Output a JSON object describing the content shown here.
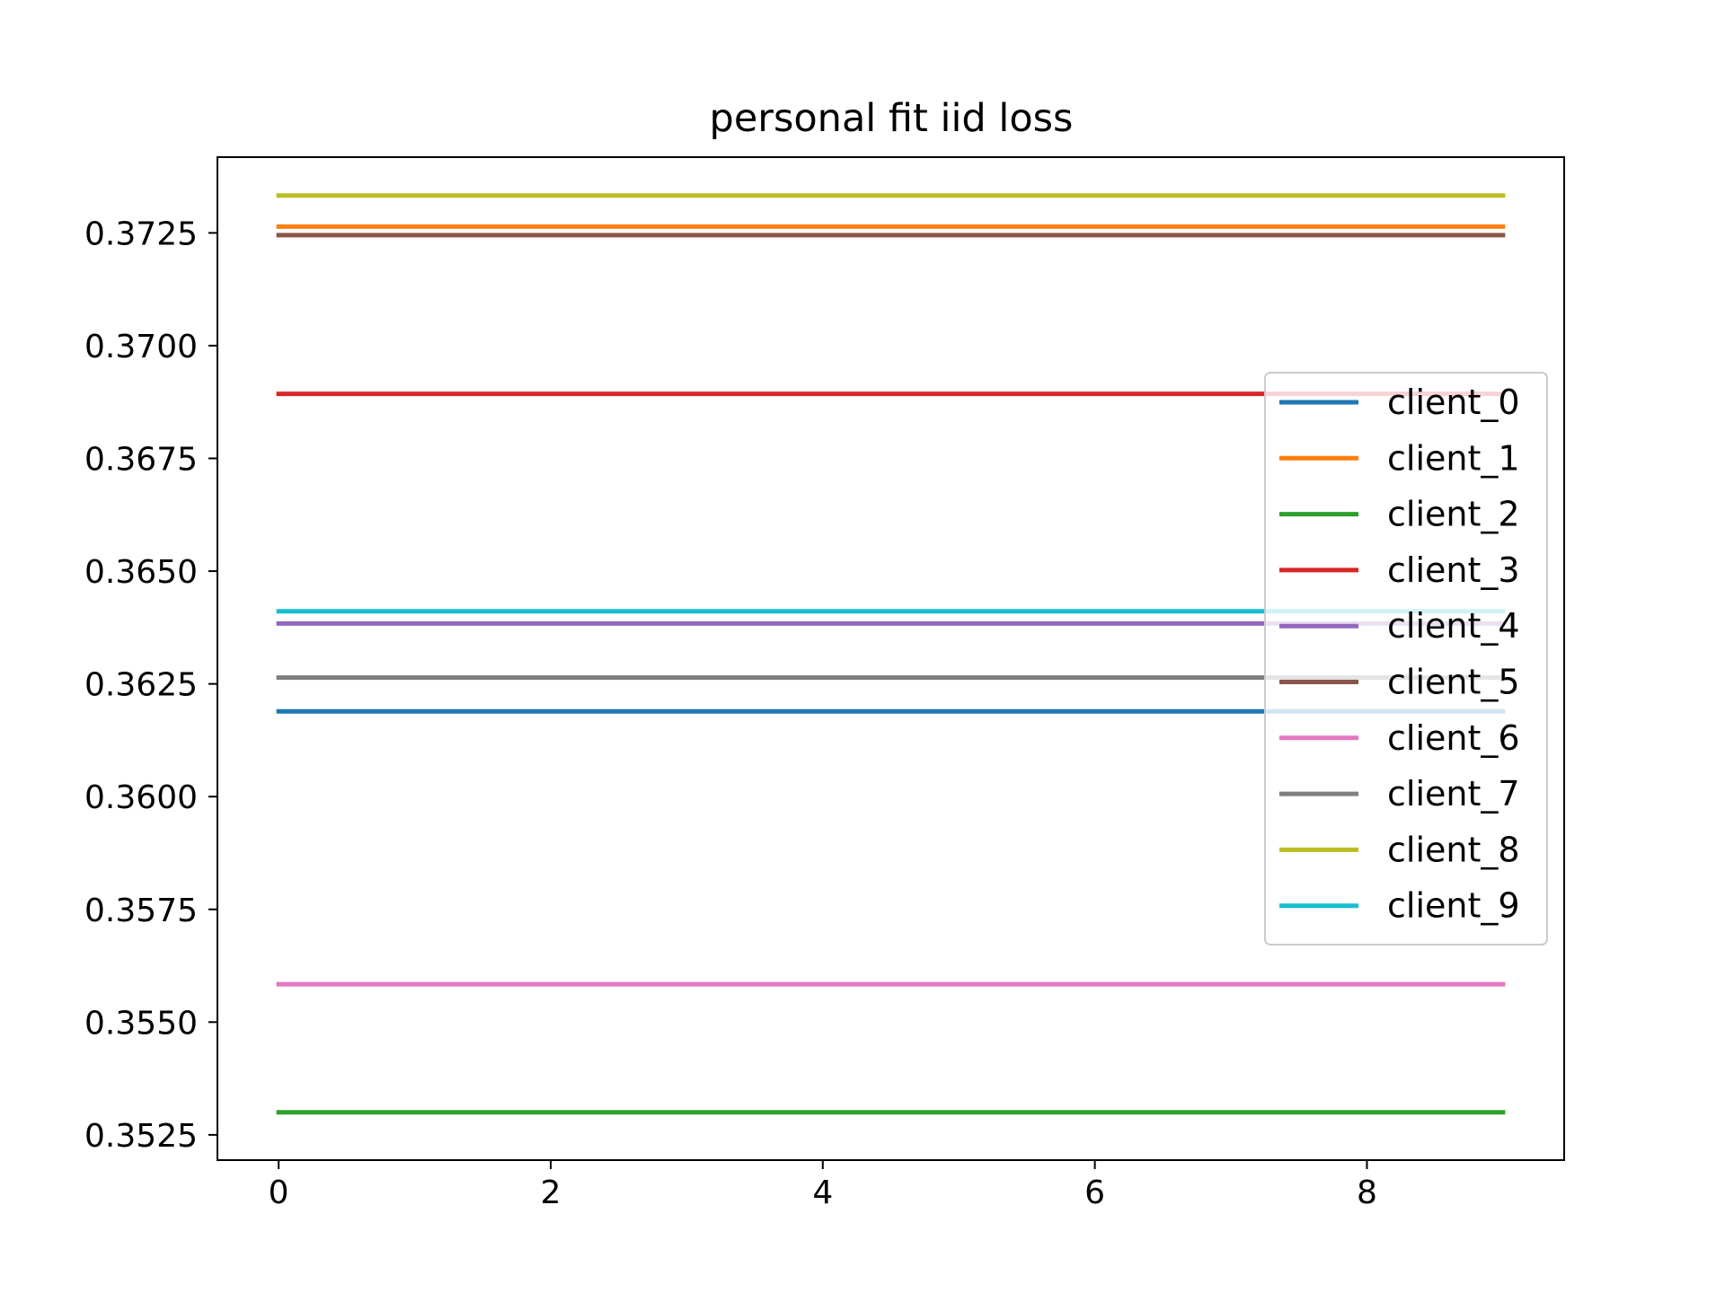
{
  "chart_data": {
    "type": "line",
    "title": "personal fit iid loss",
    "xlabel": "",
    "ylabel": "",
    "x": [
      0,
      1,
      2,
      3,
      4,
      5,
      6,
      7,
      8,
      9
    ],
    "xlim": [
      -0.45,
      9.45
    ],
    "ylim": [
      0.35194,
      0.37418
    ],
    "xticks": [
      0,
      2,
      4,
      6,
      8
    ],
    "xtick_labels": [
      "0",
      "2",
      "4",
      "6",
      "8"
    ],
    "yticks": [
      0.3525,
      0.355,
      0.3575,
      0.36,
      0.3625,
      0.365,
      0.3675,
      0.37,
      0.3725
    ],
    "ytick_labels": [
      "0.3525",
      "0.3550",
      "0.3575",
      "0.3600",
      "0.3625",
      "0.3650",
      "0.3675",
      "0.3700",
      "0.3725"
    ],
    "grid": false,
    "legend_position": "center-right",
    "series": [
      {
        "name": "client_0",
        "color": "#1f77b4",
        "values": [
          0.36189,
          0.36189,
          0.36189,
          0.36189,
          0.36189,
          0.36189,
          0.36189,
          0.36189,
          0.36189,
          0.36189
        ]
      },
      {
        "name": "client_1",
        "color": "#ff7f0e",
        "values": [
          0.37264,
          0.37264,
          0.37264,
          0.37264,
          0.37264,
          0.37264,
          0.37264,
          0.37264,
          0.37264,
          0.37264
        ]
      },
      {
        "name": "client_2",
        "color": "#2ca02c",
        "values": [
          0.353,
          0.353,
          0.353,
          0.353,
          0.353,
          0.353,
          0.353,
          0.353,
          0.353,
          0.353
        ]
      },
      {
        "name": "client_3",
        "color": "#d62728",
        "values": [
          0.36893,
          0.36893,
          0.36893,
          0.36893,
          0.36893,
          0.36893,
          0.36893,
          0.36893,
          0.36893,
          0.36893
        ]
      },
      {
        "name": "client_4",
        "color": "#9467bd",
        "values": [
          0.36384,
          0.36384,
          0.36384,
          0.36384,
          0.36384,
          0.36384,
          0.36384,
          0.36384,
          0.36384,
          0.36384
        ]
      },
      {
        "name": "client_5",
        "color": "#8c564b",
        "values": [
          0.37245,
          0.37245,
          0.37245,
          0.37245,
          0.37245,
          0.37245,
          0.37245,
          0.37245,
          0.37245,
          0.37245
        ]
      },
      {
        "name": "client_6",
        "color": "#e377c2",
        "values": [
          0.35584,
          0.35584,
          0.35584,
          0.35584,
          0.35584,
          0.35584,
          0.35584,
          0.35584,
          0.35584,
          0.35584
        ]
      },
      {
        "name": "client_7",
        "color": "#7f7f7f",
        "values": [
          0.36264,
          0.36264,
          0.36264,
          0.36264,
          0.36264,
          0.36264,
          0.36264,
          0.36264,
          0.36264,
          0.36264
        ]
      },
      {
        "name": "client_8",
        "color": "#bcbd22",
        "values": [
          0.37333,
          0.37333,
          0.37333,
          0.37333,
          0.37333,
          0.37333,
          0.37333,
          0.37333,
          0.37333,
          0.37333
        ]
      },
      {
        "name": "client_9",
        "color": "#17becf",
        "values": [
          0.36411,
          0.36411,
          0.36411,
          0.36411,
          0.36411,
          0.36411,
          0.36411,
          0.36411,
          0.36411,
          0.36411
        ]
      }
    ]
  }
}
